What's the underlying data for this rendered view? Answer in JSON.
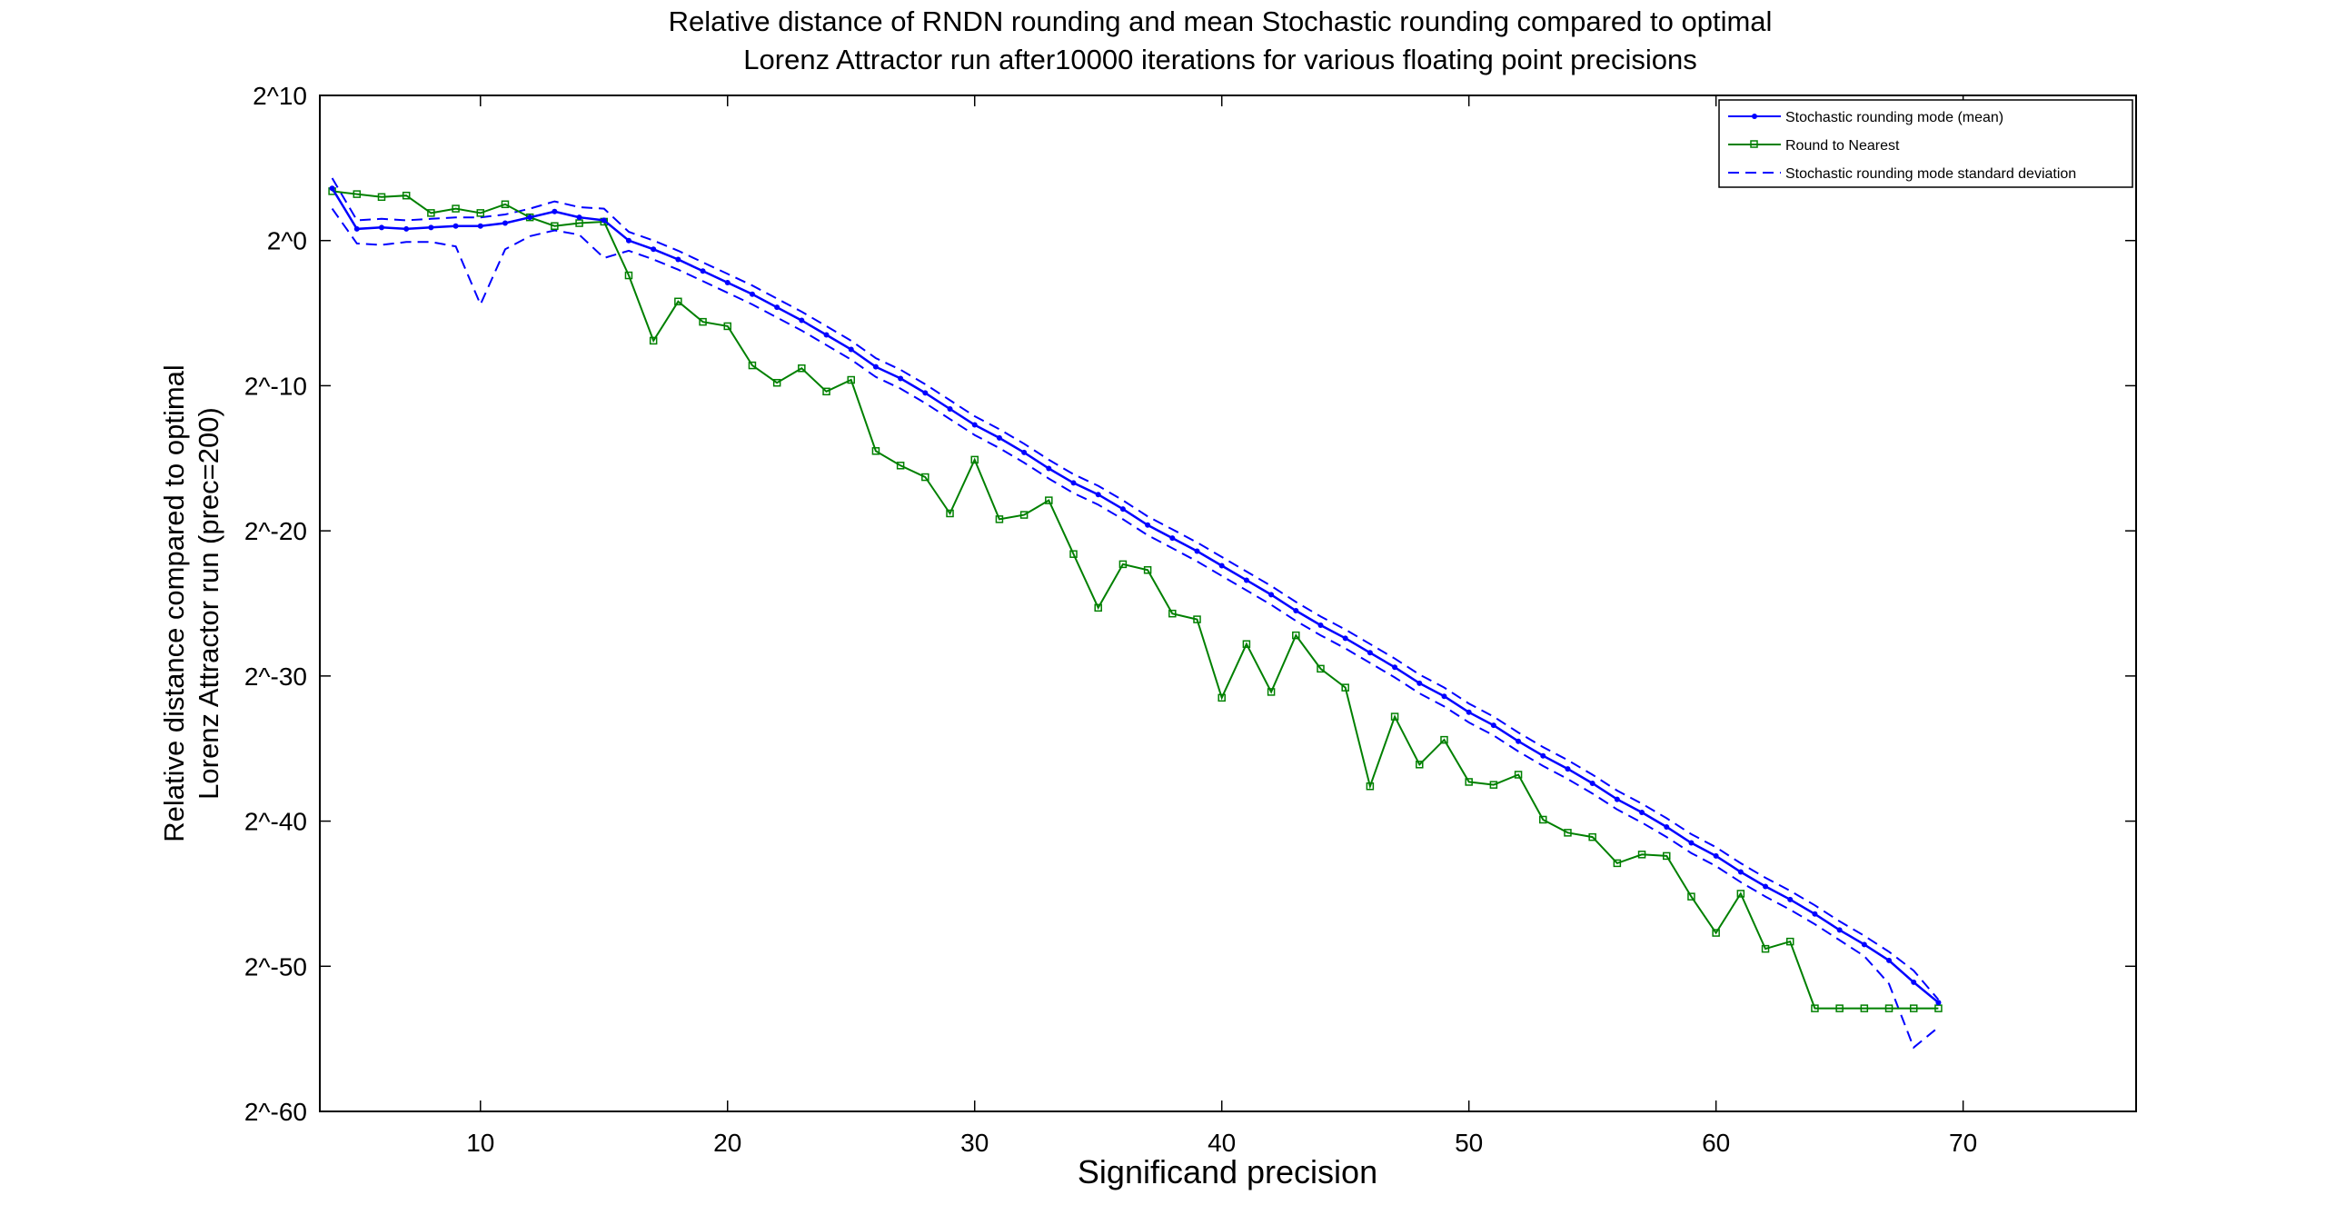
{
  "chart_data": {
    "type": "line",
    "title": "Relative distance of RNDN rounding and mean Stochastic rounding compared to optimal",
    "subtitle": "Lorenz Attractor run after10000 iterations for various floating point precisions",
    "xlabel": "Significand precision",
    "ylabel_lines": [
      "Relative distance compared to optimal",
      "Lorenz Attractor run (prec=200)"
    ],
    "xlim": [
      3.5,
      77
    ],
    "ylim": [
      -60,
      10
    ],
    "x_ticks": [
      10,
      20,
      30,
      40,
      50,
      60,
      70
    ],
    "y_ticks": [
      {
        "value": 10,
        "label": "2^10"
      },
      {
        "value": 0,
        "label": "2^0"
      },
      {
        "value": -10,
        "label": "2^-10"
      },
      {
        "value": -20,
        "label": "2^-20"
      },
      {
        "value": -30,
        "label": "2^-30"
      },
      {
        "value": -40,
        "label": "2^-40"
      },
      {
        "value": -50,
        "label": "2^-50"
      },
      {
        "value": -60,
        "label": "2^-60"
      }
    ],
    "grid": false,
    "legend_position": "top-right",
    "x": [
      4,
      5,
      6,
      7,
      8,
      9,
      10,
      11,
      12,
      13,
      14,
      15,
      16,
      17,
      18,
      19,
      20,
      21,
      22,
      23,
      24,
      25,
      26,
      27,
      28,
      29,
      30,
      31,
      32,
      33,
      34,
      35,
      36,
      37,
      38,
      39,
      40,
      41,
      42,
      43,
      44,
      45,
      46,
      47,
      48,
      49,
      50,
      51,
      52,
      53,
      54,
      55,
      56,
      57,
      58,
      59,
      60,
      61,
      62,
      63,
      64,
      65,
      66,
      67,
      68,
      69
    ],
    "series": [
      {
        "name": "Stochastic rounding mode (mean)",
        "color": "#0000ff",
        "style": "solid",
        "marker": "dot",
        "values": [
          3.6,
          0.8,
          0.9,
          0.8,
          0.9,
          1.0,
          1.0,
          1.2,
          1.6,
          2.0,
          1.6,
          1.4,
          0.0,
          -0.6,
          -1.3,
          -2.1,
          -2.9,
          -3.7,
          -4.6,
          -5.5,
          -6.5,
          -7.5,
          -8.7,
          -9.5,
          -10.5,
          -11.6,
          -12.7,
          -13.6,
          -14.6,
          -15.7,
          -16.7,
          -17.5,
          -18.5,
          -19.6,
          -20.5,
          -21.4,
          -22.4,
          -23.4,
          -24.4,
          -25.5,
          -26.5,
          -27.4,
          -28.4,
          -29.4,
          -30.5,
          -31.4,
          -32.5,
          -33.4,
          -34.5,
          -35.5,
          -36.4,
          -37.4,
          -38.5,
          -39.4,
          -40.4,
          -41.5,
          -42.4,
          -43.5,
          -44.5,
          -45.4,
          -46.4,
          -47.5,
          -48.5,
          -49.6,
          -51.1,
          -52.5
        ]
      },
      {
        "name": "Round to Nearest",
        "color": "#008000",
        "style": "solid",
        "marker": "square",
        "values": [
          3.4,
          3.2,
          3.0,
          3.1,
          1.9,
          2.2,
          1.9,
          2.5,
          1.6,
          1.0,
          1.2,
          1.3,
          -2.4,
          -6.9,
          -4.2,
          -5.6,
          -5.9,
          -8.6,
          -9.8,
          -8.8,
          -10.4,
          -9.6,
          -14.5,
          -15.5,
          -16.3,
          -18.8,
          -15.1,
          -19.2,
          -18.9,
          -17.9,
          -21.6,
          -25.3,
          -22.3,
          -22.7,
          -25.7,
          -26.1,
          -31.5,
          -27.8,
          -31.1,
          -27.2,
          -29.5,
          -30.8,
          -37.6,
          -32.8,
          -36.1,
          -34.4,
          -37.3,
          -37.5,
          -36.8,
          -39.9,
          -40.8,
          -41.1,
          -42.9,
          -42.3,
          -42.4,
          -45.2,
          -47.7,
          -45.0,
          -48.8,
          -48.3,
          -52.9,
          -52.9,
          -52.9,
          -52.9,
          -52.9,
          -52.9
        ]
      },
      {
        "name": "Stochastic rounding mode standard deviation",
        "color": "#0000ff",
        "style": "dashed",
        "marker": "none",
        "upper": [
          4.3,
          1.4,
          1.5,
          1.4,
          1.5,
          1.6,
          1.6,
          1.8,
          2.2,
          2.7,
          2.3,
          2.2,
          0.6,
          0.0,
          -0.7,
          -1.5,
          -2.3,
          -3.1,
          -4.0,
          -4.9,
          -5.9,
          -6.9,
          -8.1,
          -8.9,
          -9.9,
          -11.0,
          -12.1,
          -13.0,
          -14.0,
          -15.1,
          -16.1,
          -16.9,
          -17.9,
          -19.0,
          -19.9,
          -20.8,
          -21.8,
          -22.8,
          -23.8,
          -24.9,
          -25.9,
          -26.8,
          -27.8,
          -28.8,
          -29.9,
          -30.8,
          -31.9,
          -32.8,
          -33.9,
          -34.9,
          -35.8,
          -36.8,
          -37.9,
          -38.8,
          -39.8,
          -40.9,
          -41.8,
          -42.9,
          -43.9,
          -44.8,
          -45.8,
          -46.9,
          -47.9,
          -49.0,
          -50.3,
          -52.3
        ],
        "lower": [
          2.2,
          -0.2,
          -0.3,
          -0.1,
          -0.1,
          -0.4,
          -4.4,
          -0.6,
          0.3,
          0.7,
          0.4,
          -1.2,
          -0.7,
          -1.3,
          -2.0,
          -2.8,
          -3.6,
          -4.4,
          -5.3,
          -6.2,
          -7.2,
          -8.2,
          -9.4,
          -10.2,
          -11.2,
          -12.3,
          -13.4,
          -14.3,
          -15.3,
          -16.4,
          -17.4,
          -18.2,
          -19.2,
          -20.3,
          -21.2,
          -22.1,
          -23.1,
          -24.1,
          -25.1,
          -26.2,
          -27.2,
          -28.1,
          -29.1,
          -30.1,
          -31.2,
          -32.1,
          -33.2,
          -34.1,
          -35.2,
          -36.2,
          -37.1,
          -38.1,
          -39.2,
          -40.1,
          -41.1,
          -42.2,
          -43.1,
          -44.2,
          -45.2,
          -46.1,
          -47.1,
          -48.2,
          -49.3,
          -51.2,
          -55.6,
          -54.2
        ]
      }
    ]
  }
}
